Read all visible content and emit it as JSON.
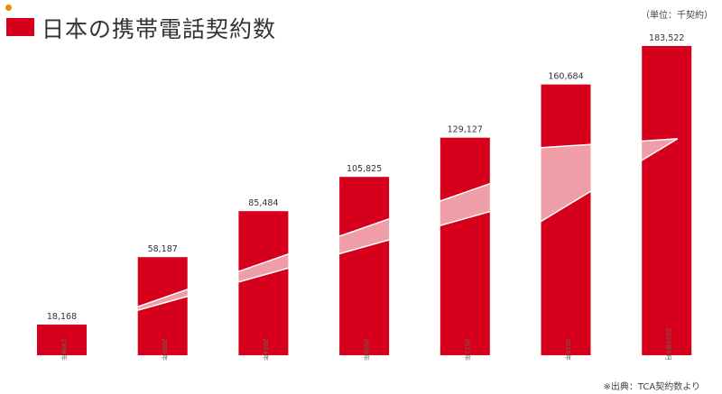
{
  "header": {
    "title": "日本の携帯電話契約数",
    "unit": "（単位：千契約）"
  },
  "footer": {
    "source": "※出典：TCA契約数より"
  },
  "colors": {
    "bar": "#d6001c",
    "accent_bar": "#d6001c",
    "logo": "#f08a00",
    "arrow": "#ffffff"
  },
  "chart_data": {
    "type": "bar",
    "title": "日本の携帯電話契約数",
    "unit_label": "（単位：千契約）",
    "categories": [
      "1996年",
      "2000年",
      "2004年",
      "2008年",
      "2012年",
      "2016年",
      "2020年6月"
    ],
    "values": [
      18168,
      58187,
      85484,
      105825,
      129127,
      160684,
      183522
    ],
    "data_labels": [
      "18,168",
      "58,187",
      "85,484",
      "105,825",
      "129,127",
      "160,684",
      "183,522"
    ],
    "ylim": [
      0,
      183522
    ],
    "grid": false,
    "annotations": [
      "growth-arrow"
    ]
  }
}
